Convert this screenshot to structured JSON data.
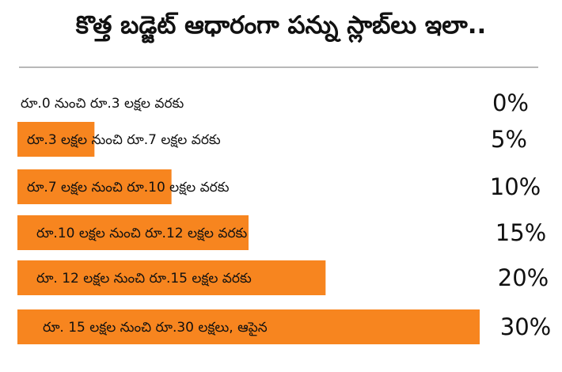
{
  "title": "కొత్త బడ్జెట్ ఆధారంగా పన్ను స్లాబ్‌లు ఇలా..",
  "bar_color": "#f7851f",
  "chart_data": {
    "type": "bar",
    "orientation": "horizontal",
    "categories": [
      "రూ.0 నుంచి రూ.3 లక్షల వరకు",
      "రూ.3 లక్షల నుంచి రూ.7 లక్షల వరకు",
      "రూ.7 లక్షల నుంచి రూ.10 లక్షల వరకు",
      "రూ.10 లక్షల నుంచి రూ.12 లక్షల వరకు",
      "రూ. 12 లక్షల నుంచి రూ.15 లక్షల  వరకు",
      "రూ. 15 లక్షల నుంచి రూ.30 లక్షలు, ఆపైన"
    ],
    "values": [
      0,
      5,
      10,
      15,
      20,
      30
    ],
    "value_labels": [
      "0%",
      "5%",
      "10%",
      "15%",
      "20%",
      "30%"
    ],
    "xlim": [
      0,
      30
    ]
  }
}
